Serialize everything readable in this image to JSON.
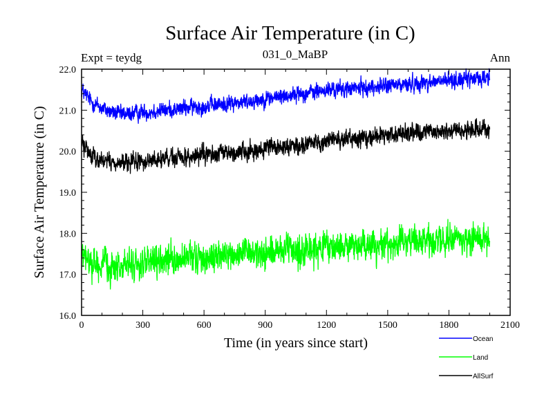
{
  "chart_data": {
    "type": "line",
    "title": "Surface Air Temperature (in C)",
    "subtitle": "031_0_MaBP",
    "left_note": "Expt = teydg",
    "right_note": "Ann",
    "xlabel": "Time (in years since start)",
    "ylabel": "Surface Air Temperature (in C)",
    "xlim": [
      0,
      2100
    ],
    "ylim": [
      16.0,
      22.0
    ],
    "x_ticks": [
      0,
      300,
      600,
      900,
      1200,
      1500,
      1800,
      2100
    ],
    "x_tick_labels": [
      "0",
      "300",
      "600",
      "900",
      "1200",
      "1500",
      "1800",
      "2100"
    ],
    "y_ticks": [
      16.0,
      17.0,
      18.0,
      19.0,
      20.0,
      21.0,
      22.0
    ],
    "y_tick_labels": [
      "16.0",
      "17.0",
      "18.0",
      "19.0",
      "20.0",
      "21.0",
      "22.0"
    ],
    "legend_position": "bottom-right, below plot",
    "series": [
      {
        "name": "Ocean",
        "color": "#0000ff",
        "noise": 0.09,
        "x": [
          0,
          25,
          50,
          100,
          150,
          200,
          250,
          300,
          400,
          500,
          600,
          700,
          800,
          900,
          1000,
          1100,
          1200,
          1300,
          1400,
          1500,
          1600,
          1700,
          1800,
          1900,
          2000
        ],
        "values": [
          21.5,
          21.35,
          21.2,
          21.05,
          20.95,
          20.9,
          20.92,
          20.95,
          21.0,
          21.05,
          21.1,
          21.15,
          21.2,
          21.28,
          21.35,
          21.42,
          21.48,
          21.52,
          21.55,
          21.6,
          21.63,
          21.68,
          21.72,
          21.75,
          21.8
        ]
      },
      {
        "name": "Land",
        "color": "#00ff00",
        "noise": 0.17,
        "x": [
          0,
          25,
          50,
          100,
          150,
          200,
          250,
          300,
          400,
          500,
          600,
          700,
          800,
          900,
          1000,
          1100,
          1200,
          1300,
          1400,
          1500,
          1600,
          1700,
          1800,
          1900,
          2000
        ],
        "values": [
          17.45,
          17.35,
          17.3,
          17.22,
          17.18,
          17.2,
          17.22,
          17.25,
          17.3,
          17.35,
          17.4,
          17.45,
          17.5,
          17.52,
          17.55,
          17.6,
          17.65,
          17.68,
          17.7,
          17.75,
          17.8,
          17.82,
          17.85,
          17.88,
          17.9
        ]
      },
      {
        "name": "AllSurf",
        "color": "#000000",
        "noise": 0.1,
        "x": [
          0,
          25,
          50,
          100,
          150,
          200,
          250,
          300,
          400,
          500,
          600,
          700,
          800,
          900,
          1000,
          1100,
          1200,
          1300,
          1400,
          1500,
          1600,
          1700,
          1800,
          1900,
          2000
        ],
        "values": [
          20.2,
          20.05,
          19.9,
          19.78,
          19.72,
          19.7,
          19.72,
          19.75,
          19.8,
          19.85,
          19.9,
          19.95,
          20.0,
          20.05,
          20.12,
          20.18,
          20.25,
          20.3,
          20.35,
          20.4,
          20.43,
          20.47,
          20.5,
          20.52,
          20.55
        ]
      }
    ]
  }
}
